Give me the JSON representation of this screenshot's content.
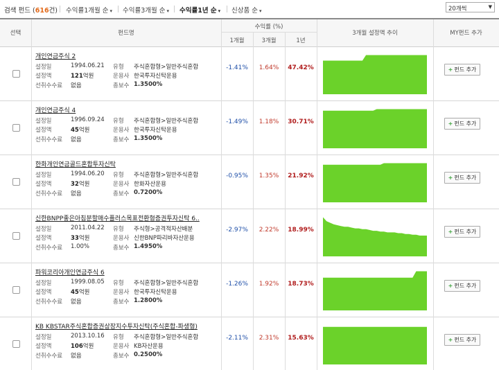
{
  "toolbar": {
    "title_prefix": "검색 펀드 (",
    "count": "616",
    "title_suffix": "건)",
    "sorts": [
      "수익률1개월 순",
      "수익률3개월 순",
      "수익률1년 순",
      "신상품 순"
    ],
    "active_sort": 2,
    "per_page": "20개씩"
  },
  "header": {
    "select": "선택",
    "fund_name": "펀드명",
    "returns_group": "수익률 (%)",
    "m1": "1개월",
    "m3": "3개월",
    "y1": "1년",
    "trend": "3개월 설정액 추이",
    "my_add": "MY펀드 추가"
  },
  "labels": {
    "setup_date": "설정일",
    "setup_amount": "설정액",
    "front_fee": "선취수수료",
    "type": "유형",
    "manager": "운용사",
    "fee": "총보수"
  },
  "add_button_label": "펀드 추가",
  "funds": [
    {
      "name": "개인연금주식 2",
      "date": "1994.06.21",
      "amount": "121",
      "unit": "억원",
      "front_fee": "없음",
      "type": "주식혼합형>일반주식혼합",
      "manager": "한국투자신탁운용",
      "fee": "1.3500%",
      "r1": "-1.41%",
      "r3": "1.64%",
      "y1": "47.42%",
      "spark": [
        42,
        42,
        42,
        42,
        42,
        42,
        42,
        42,
        42,
        42,
        42,
        42,
        49,
        49,
        49,
        49,
        49,
        49,
        49,
        49,
        49,
        49,
        49,
        49,
        49,
        49,
        49,
        49,
        49,
        49
      ]
    },
    {
      "name": "개인연금주식 4",
      "date": "1996.09.24",
      "amount": "45",
      "unit": "억원",
      "front_fee": "없음",
      "type": "주식혼합형>일반주식혼합",
      "manager": "한국투자신탁운용",
      "fee": "1.3500%",
      "r1": "-1.49%",
      "r3": "1.18%",
      "y1": "30.71%",
      "spark": [
        47,
        47,
        47,
        47,
        47,
        47,
        47,
        47,
        47,
        47,
        47,
        47,
        47,
        47,
        47,
        49,
        49,
        49,
        49,
        49,
        49,
        49,
        49,
        49,
        49,
        49,
        49,
        49,
        49,
        49
      ]
    },
    {
      "name": "한화개인연금골드혼합투자신탁",
      "date": "1994.06.20",
      "amount": "32",
      "unit": "억원",
      "front_fee": "없음",
      "type": "주식혼합형>일반주식혼합",
      "manager": "한화자산운용",
      "fee": "0.7200%",
      "r1": "-0.95%",
      "r3": "1.35%",
      "y1": "21.92%",
      "spark": [
        47,
        47,
        47,
        47,
        47,
        47,
        47,
        47,
        47,
        47,
        47,
        47,
        47,
        47,
        47,
        47,
        47,
        49,
        49,
        49,
        49,
        49,
        49,
        49,
        49,
        49,
        49,
        49,
        49,
        49
      ]
    },
    {
      "name": "신한BNPP좋은아침분할매수플러스목표전환형증권투자신탁 6..",
      "date": "2011.04.22",
      "amount": "33",
      "unit": "억원",
      "front_fee": "1.00%",
      "type": "주식형>공격적자산배분",
      "manager": "신한BNP파리바자산운용",
      "fee": "1.4950%",
      "r1": "-2.97%",
      "r3": "2.22%",
      "y1": "18.99%",
      "spark": [
        49,
        44,
        42,
        40,
        39,
        38,
        37,
        37,
        36,
        35,
        35,
        34,
        34,
        33,
        32,
        32,
        31,
        31,
        30,
        30,
        30,
        29,
        29,
        28,
        28,
        27,
        27,
        26,
        26,
        26
      ]
    },
    {
      "name": "파워코리아개인연금주식 6",
      "date": "1999.08.05",
      "amount": "45",
      "unit": "억원",
      "front_fee": "없음",
      "type": "주식혼합형>일반주식혼합",
      "manager": "한국투자신탁운용",
      "fee": "1.2800%",
      "r1": "-1.26%",
      "r3": "1.92%",
      "y1": "18.73%",
      "spark": [
        41,
        41,
        41,
        41,
        41,
        41,
        41,
        41,
        41,
        41,
        41,
        41,
        41,
        41,
        41,
        41,
        41,
        41,
        41,
        41,
        41,
        41,
        41,
        41,
        41,
        41,
        49,
        49,
        49,
        49
      ]
    },
    {
      "name": "KB KBSTAR주식혼합증권상장지수투자신탁(주식혼합-파생형)",
      "date": "2013.10.16",
      "amount": "106",
      "unit": "억원",
      "front_fee": "없음",
      "type": "주식혼합형>일반주식혼합",
      "manager": "KB자산운용",
      "fee": "0.2500%",
      "r1": "-2.11%",
      "r3": "2.31%",
      "y1": "15.63%",
      "spark": [
        47,
        47,
        47,
        47,
        47,
        47,
        47,
        47,
        47,
        47,
        47,
        47,
        47,
        47,
        47,
        47,
        47,
        47,
        47,
        47,
        47,
        47,
        47,
        47,
        47,
        47,
        47,
        47,
        47,
        47
      ]
    }
  ]
}
